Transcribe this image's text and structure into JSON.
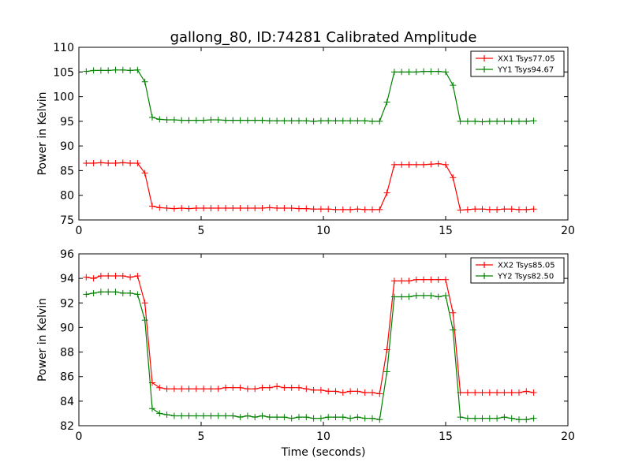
{
  "title": "gallong_80, ID:74281 Calibrated Amplitude",
  "chart_data": [
    {
      "type": "line",
      "title": "gallong_80, ID:74281 Calibrated Amplitude",
      "xlabel": "",
      "ylabel": "Power in Kelvin",
      "xlim": [
        0,
        20
      ],
      "ylim": [
        75,
        110
      ],
      "xticks": [
        0,
        5,
        10,
        15,
        20
      ],
      "yticks": [
        75,
        80,
        85,
        90,
        95,
        100,
        105,
        110
      ],
      "legend_position": "top-right",
      "x": [
        0.3,
        0.6,
        0.9,
        1.2,
        1.5,
        1.8,
        2.1,
        2.4,
        2.7,
        3.0,
        3.3,
        3.6,
        3.9,
        4.2,
        4.5,
        4.8,
        5.1,
        5.4,
        5.7,
        6.0,
        6.3,
        6.6,
        6.9,
        7.2,
        7.5,
        7.8,
        8.1,
        8.4,
        8.7,
        9.0,
        9.3,
        9.6,
        9.9,
        10.2,
        10.5,
        10.8,
        11.1,
        11.4,
        11.7,
        12.0,
        12.3,
        12.6,
        12.9,
        13.2,
        13.5,
        13.8,
        14.1,
        14.4,
        14.7,
        15.0,
        15.3,
        15.6,
        15.9,
        16.2,
        16.5,
        16.8,
        17.1,
        17.4,
        17.7,
        18.0,
        18.3,
        18.6
      ],
      "series": [
        {
          "name": "XX1 Tsys77.05",
          "color": "#ff0000",
          "values": [
            86.5,
            86.5,
            86.6,
            86.5,
            86.5,
            86.6,
            86.5,
            86.5,
            84.5,
            77.8,
            77.5,
            77.4,
            77.3,
            77.4,
            77.3,
            77.4,
            77.4,
            77.4,
            77.4,
            77.4,
            77.4,
            77.4,
            77.4,
            77.4,
            77.4,
            77.5,
            77.4,
            77.4,
            77.4,
            77.3,
            77.3,
            77.2,
            77.2,
            77.2,
            77.1,
            77.1,
            77.1,
            77.2,
            77.1,
            77.1,
            77.1,
            80.5,
            86.2,
            86.2,
            86.2,
            86.2,
            86.2,
            86.3,
            86.4,
            86.2,
            83.6,
            77.0,
            77.1,
            77.2,
            77.2,
            77.1,
            77.1,
            77.2,
            77.2,
            77.1,
            77.1,
            77.2
          ]
        },
        {
          "name": "YY1 Tsys94.67",
          "color": "#008000",
          "values": [
            105.1,
            105.3,
            105.3,
            105.3,
            105.4,
            105.4,
            105.3,
            105.4,
            103.0,
            95.8,
            95.4,
            95.3,
            95.3,
            95.2,
            95.2,
            95.2,
            95.2,
            95.3,
            95.3,
            95.2,
            95.2,
            95.2,
            95.2,
            95.2,
            95.2,
            95.1,
            95.1,
            95.1,
            95.1,
            95.1,
            95.1,
            95.0,
            95.1,
            95.1,
            95.1,
            95.1,
            95.1,
            95.1,
            95.1,
            95.0,
            95.0,
            98.9,
            105.0,
            105.0,
            105.0,
            105.0,
            105.1,
            105.1,
            105.1,
            105.0,
            102.3,
            95.0,
            95.0,
            95.0,
            94.9,
            95.0,
            95.0,
            95.0,
            95.0,
            95.0,
            95.0,
            95.1
          ]
        }
      ]
    },
    {
      "type": "line",
      "title": "",
      "xlabel": "Time (seconds)",
      "ylabel": "Power in Kelvin",
      "xlim": [
        0,
        20
      ],
      "ylim": [
        82,
        96
      ],
      "xticks": [
        0,
        5,
        10,
        15,
        20
      ],
      "yticks": [
        82,
        84,
        86,
        88,
        90,
        92,
        94,
        96
      ],
      "legend_position": "top-right",
      "x": [
        0.3,
        0.6,
        0.9,
        1.2,
        1.5,
        1.8,
        2.1,
        2.4,
        2.7,
        3.0,
        3.3,
        3.6,
        3.9,
        4.2,
        4.5,
        4.8,
        5.1,
        5.4,
        5.7,
        6.0,
        6.3,
        6.6,
        6.9,
        7.2,
        7.5,
        7.8,
        8.1,
        8.4,
        8.7,
        9.0,
        9.3,
        9.6,
        9.9,
        10.2,
        10.5,
        10.8,
        11.1,
        11.4,
        11.7,
        12.0,
        12.3,
        12.6,
        12.9,
        13.2,
        13.5,
        13.8,
        14.1,
        14.4,
        14.7,
        15.0,
        15.3,
        15.6,
        15.9,
        16.2,
        16.5,
        16.8,
        17.1,
        17.4,
        17.7,
        18.0,
        18.3,
        18.6
      ],
      "series": [
        {
          "name": "XX2 Tsys85.05",
          "color": "#ff0000",
          "values": [
            94.1,
            94.0,
            94.2,
            94.2,
            94.2,
            94.2,
            94.1,
            94.2,
            92.0,
            85.5,
            85.1,
            85.0,
            85.0,
            85.0,
            85.0,
            85.0,
            85.0,
            85.0,
            85.0,
            85.1,
            85.1,
            85.1,
            85.0,
            85.0,
            85.1,
            85.1,
            85.2,
            85.1,
            85.1,
            85.1,
            85.0,
            84.9,
            84.9,
            84.8,
            84.8,
            84.7,
            84.8,
            84.8,
            84.7,
            84.7,
            84.6,
            88.2,
            93.8,
            93.8,
            93.8,
            93.9,
            93.9,
            93.9,
            93.9,
            93.9,
            91.2,
            84.7,
            84.7,
            84.7,
            84.7,
            84.7,
            84.7,
            84.7,
            84.7,
            84.7,
            84.8,
            84.7
          ]
        },
        {
          "name": "YY2 Tsys82.50",
          "color": "#008000",
          "values": [
            92.7,
            92.8,
            92.9,
            92.9,
            92.9,
            92.8,
            92.8,
            92.7,
            90.6,
            83.4,
            83.0,
            82.9,
            82.8,
            82.8,
            82.8,
            82.8,
            82.8,
            82.8,
            82.8,
            82.8,
            82.8,
            82.7,
            82.8,
            82.7,
            82.8,
            82.7,
            82.7,
            82.7,
            82.6,
            82.7,
            82.7,
            82.6,
            82.6,
            82.7,
            82.7,
            82.7,
            82.6,
            82.7,
            82.6,
            82.6,
            82.5,
            86.4,
            92.5,
            92.5,
            92.5,
            92.6,
            92.6,
            92.6,
            92.5,
            92.6,
            89.8,
            82.7,
            82.6,
            82.6,
            82.6,
            82.6,
            82.6,
            82.7,
            82.6,
            82.5,
            82.5,
            82.6
          ]
        }
      ]
    }
  ]
}
